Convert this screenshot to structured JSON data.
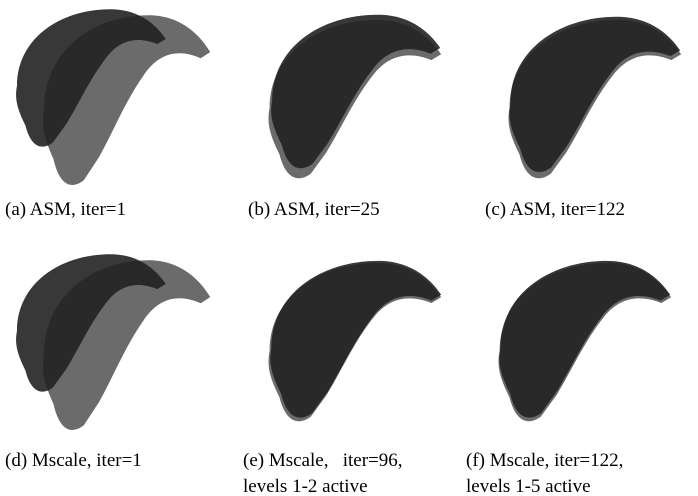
{
  "panels": [
    {
      "caption": [
        "(a) ASM, iter=1"
      ]
    },
    {
      "caption": [
        "(b) ASM, iter=25"
      ]
    },
    {
      "caption": [
        "(c) ASM, iter=122"
      ]
    },
    {
      "caption": [
        "(d) Mscale, iter=1"
      ]
    },
    {
      "caption": [
        "(e) Mscale,   iter=96,",
        "levels 1-2 active"
      ]
    },
    {
      "caption": [
        "(f) Mscale, iter=122,",
        "levels 1-5 active"
      ]
    }
  ]
}
